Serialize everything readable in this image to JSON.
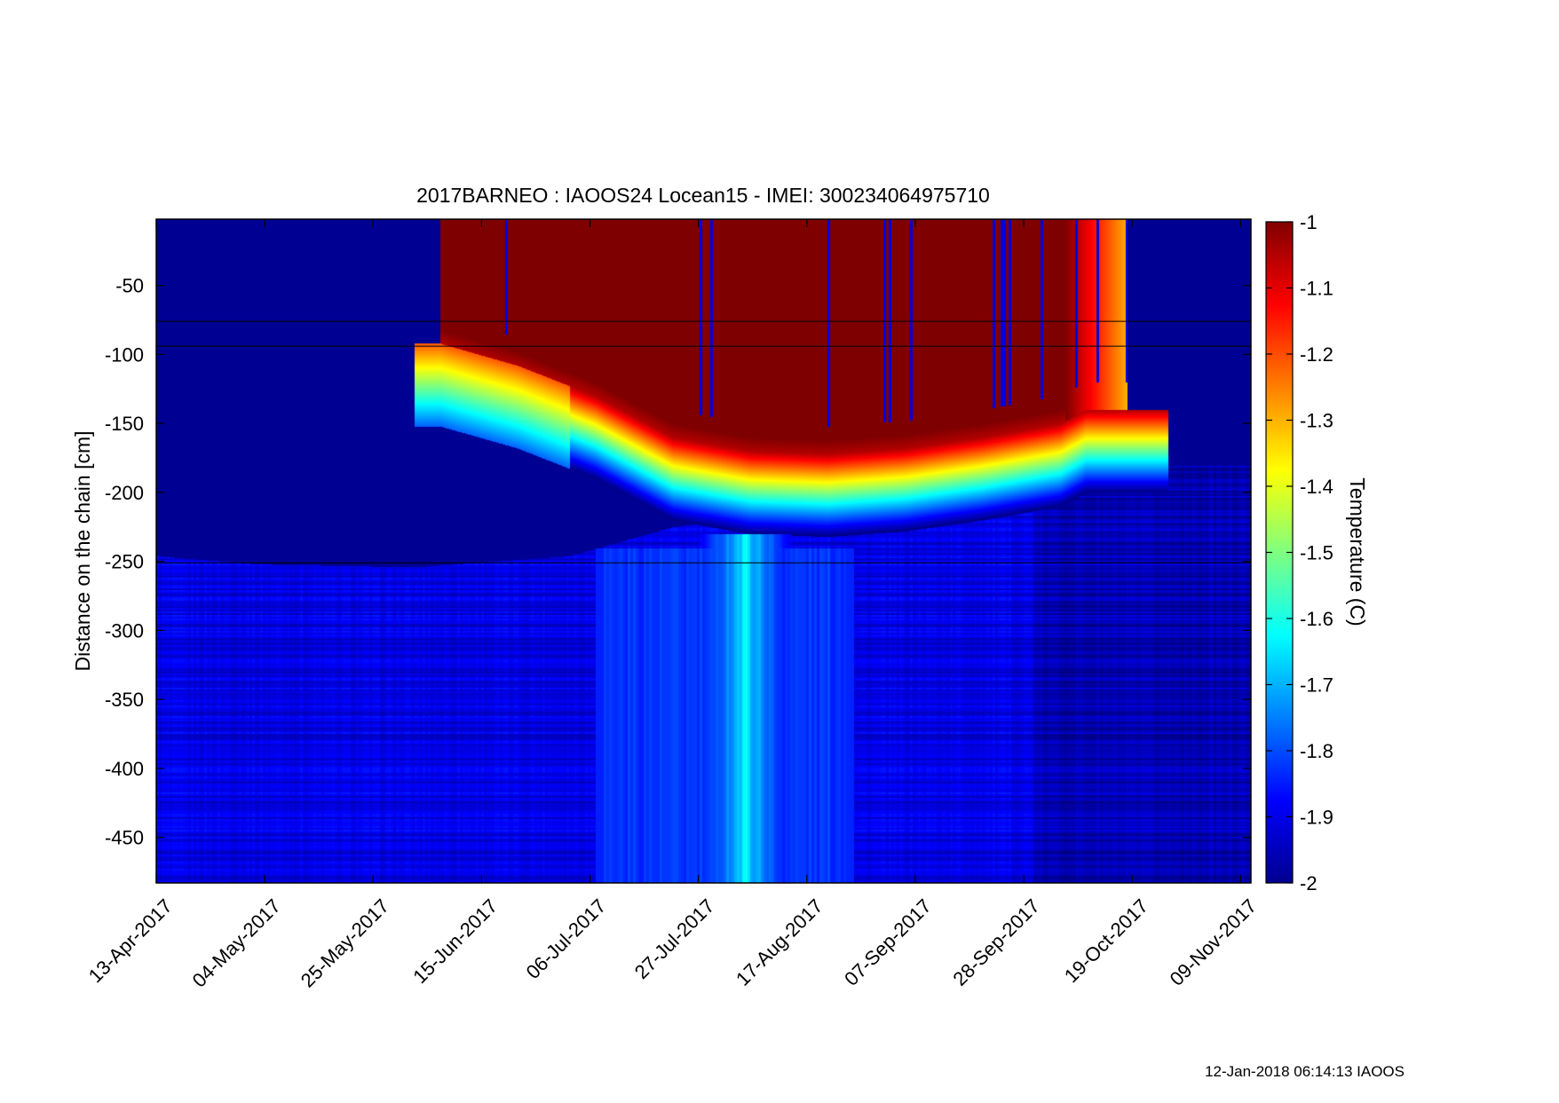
{
  "chart_data": {
    "type": "heatmap",
    "title": "2017BARNEO : IAOOS24  Locean15 - IMEI: 300234064975710",
    "xlabel": "",
    "ylabel": "Distance on the chain [cm]",
    "colorbar_label": "Temperature (C)",
    "x_tick_labels": [
      "13-Apr-2017",
      "04-May-2017",
      "25-May-2017",
      "15-Jun-2017",
      "06-Jul-2017",
      "27-Jul-2017",
      "17-Aug-2017",
      "07-Sep-2017",
      "28-Sep-2017",
      "19-Oct-2017",
      "09-Nov-2017"
    ],
    "x_ticks_days": [
      0,
      21,
      42,
      63,
      84,
      105,
      126,
      147,
      168,
      189,
      210
    ],
    "xlim_days": [
      0,
      212
    ],
    "xlim": [
      "13-Apr-2017",
      "11-Nov-2017"
    ],
    "y_ticks": [
      -50,
      -100,
      -150,
      -200,
      -250,
      -300,
      -350,
      -400,
      -450
    ],
    "y_tick_labels": [
      "-50",
      "-100",
      "-150",
      "-200",
      "-250",
      "-300",
      "-350",
      "-400",
      "-450"
    ],
    "ylim": [
      -483,
      -2
    ],
    "clim": [
      -2,
      -1
    ],
    "colorbar_ticks": [
      -1,
      -1.1,
      -1.2,
      -1.3,
      -1.4,
      -1.5,
      -1.6,
      -1.7,
      -1.8,
      -1.9,
      -2
    ],
    "colorbar_tick_labels": [
      "-1",
      "-1.1",
      "-1.2",
      "-1.3",
      "-1.4",
      "-1.5",
      "-1.6",
      "-1.7",
      "-1.8",
      "-1.9",
      "-2"
    ],
    "colormap": "jet",
    "horizontal_lines": [
      -76,
      -94,
      -251
    ],
    "features": {
      "warm_layer_top_days": [
        55,
        176
      ],
      "warm_layer_bottom_cm": [
        [
          55,
          -92
        ],
        [
          70,
          -108
        ],
        [
          85,
          -130
        ],
        [
          100,
          -160
        ],
        [
          115,
          -170
        ],
        [
          130,
          -172
        ],
        [
          145,
          -168
        ],
        [
          160,
          -160
        ],
        [
          175,
          -150
        ],
        [
          180,
          -140
        ]
      ],
      "cold_ice_bottom_cm": [
        [
          0,
          -246
        ],
        [
          20,
          -252
        ],
        [
          50,
          -254
        ],
        [
          80,
          -246
        ],
        [
          100,
          -225
        ],
        [
          120,
          -215
        ],
        [
          140,
          -205
        ],
        [
          160,
          -195
        ],
        [
          180,
          -185
        ],
        [
          200,
          -180
        ]
      ],
      "warm_anomaly_column_days": [
        105,
        123
      ]
    }
  },
  "footer": {
    "timestamp": "12-Jan-2018 06:14:13 IAOOS"
  }
}
